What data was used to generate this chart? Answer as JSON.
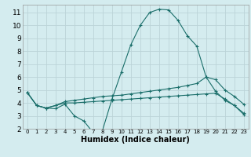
{
  "xlabel": "Humidex (Indice chaleur)",
  "bg_color": "#d4ecef",
  "grid_color": "#bbd4d8",
  "line_color": "#1a6e6a",
  "x_values": [
    0,
    1,
    2,
    3,
    4,
    5,
    6,
    7,
    8,
    9,
    10,
    11,
    12,
    13,
    14,
    15,
    16,
    17,
    18,
    19,
    20,
    21,
    22,
    23
  ],
  "line1": [
    4.8,
    3.8,
    3.6,
    3.55,
    3.9,
    3.0,
    2.6,
    1.7,
    1.9,
    4.3,
    6.4,
    8.5,
    10.0,
    11.0,
    11.25,
    11.2,
    10.4,
    9.2,
    8.4,
    6.0,
    4.9,
    4.2,
    3.8,
    3.1
  ],
  "line2": [
    4.8,
    3.8,
    3.6,
    3.8,
    4.1,
    4.2,
    4.3,
    4.4,
    4.5,
    4.55,
    4.6,
    4.7,
    4.8,
    4.9,
    5.0,
    5.1,
    5.2,
    5.35,
    5.5,
    6.0,
    5.8,
    5.0,
    4.5,
    3.9
  ],
  "line3": [
    4.8,
    3.8,
    3.6,
    3.8,
    4.0,
    4.0,
    4.05,
    4.1,
    4.15,
    4.2,
    4.25,
    4.3,
    4.35,
    4.4,
    4.45,
    4.5,
    4.55,
    4.6,
    4.65,
    4.7,
    4.75,
    4.3,
    3.8,
    3.2
  ],
  "ylim": [
    2.0,
    11.6
  ],
  "xlim": [
    -0.5,
    23.5
  ],
  "yticks": [
    2,
    3,
    4,
    5,
    6,
    7,
    8,
    9,
    10,
    11
  ],
  "xticks": [
    0,
    1,
    2,
    3,
    4,
    5,
    6,
    7,
    8,
    9,
    10,
    11,
    12,
    13,
    14,
    15,
    16,
    17,
    18,
    19,
    20,
    21,
    22,
    23
  ],
  "tick_fontsize_x": 5.0,
  "tick_fontsize_y": 6.5,
  "xlabel_fontsize": 7.0
}
